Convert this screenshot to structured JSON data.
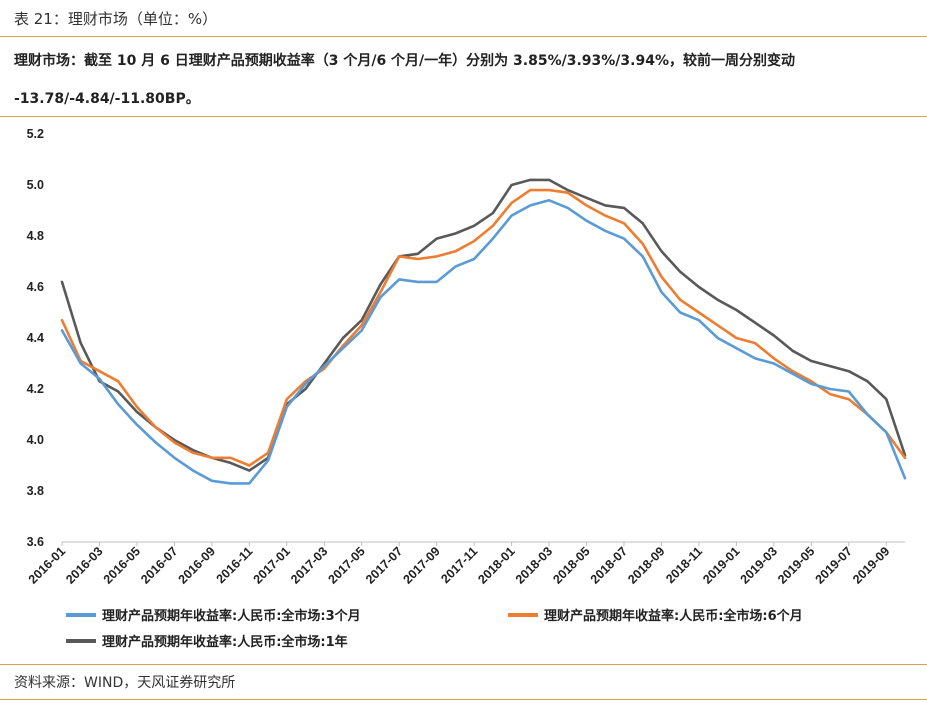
{
  "caption": "表 21：理财市场（单位：%）",
  "summary": {
    "line1": "理财市场：截至 10 月 6 日理财产品预期收益率（3 个月/6 个月/一年）分别为 3.85%/3.93%/3.94%，较前一周分别变动",
    "line2": "-13.78/-4.84/-11.80BP。"
  },
  "source": "资料来源：WIND，天风证券研究所",
  "colors": {
    "accent_rule": "#d9a24a",
    "s3m": "#5b9bd5",
    "s6m": "#ed7d31",
    "s1y": "#595959"
  },
  "chart_data": {
    "type": "line",
    "title": "",
    "xlabel": "",
    "ylabel": "",
    "ylim": [
      3.6,
      5.2
    ],
    "y_ticks": [
      "5.2",
      "5.0",
      "4.8",
      "4.6",
      "4.4",
      "4.2",
      "4.0",
      "3.8",
      "3.6"
    ],
    "x_range": [
      "2016-01",
      "2019-10"
    ],
    "x_ticks": [
      "2016-01",
      "2016-03",
      "2016-05",
      "2016-07",
      "2016-09",
      "2016-11",
      "2017-01",
      "2017-03",
      "2017-05",
      "2017-07",
      "2017-09",
      "2017-11",
      "2018-01",
      "2018-03",
      "2018-05",
      "2018-07",
      "2018-09",
      "2018-11",
      "2019-01",
      "2019-03",
      "2019-05",
      "2019-07",
      "2019-09"
    ],
    "grid": false,
    "legend": "bottom",
    "series": [
      {
        "name": "理财产品预期年收益率:人民币:全市场:3个月",
        "color": "#5b9bd5",
        "x": [
          "2016-01",
          "2016-02",
          "2016-03",
          "2016-04",
          "2016-05",
          "2016-06",
          "2016-07",
          "2016-08",
          "2016-09",
          "2016-10",
          "2016-11",
          "2016-12",
          "2017-01",
          "2017-02",
          "2017-03",
          "2017-04",
          "2017-05",
          "2017-06",
          "2017-07",
          "2017-08",
          "2017-09",
          "2017-10",
          "2017-11",
          "2017-12",
          "2018-01",
          "2018-02",
          "2018-03",
          "2018-04",
          "2018-05",
          "2018-06",
          "2018-07",
          "2018-08",
          "2018-09",
          "2018-10",
          "2018-11",
          "2018-12",
          "2019-01",
          "2019-02",
          "2019-03",
          "2019-04",
          "2019-05",
          "2019-06",
          "2019-07",
          "2019-08",
          "2019-09",
          "2019-10"
        ],
        "values": [
          4.43,
          4.3,
          4.24,
          4.14,
          4.06,
          3.99,
          3.93,
          3.88,
          3.84,
          3.83,
          3.83,
          3.92,
          4.13,
          4.22,
          4.29,
          4.36,
          4.43,
          4.56,
          4.63,
          4.62,
          4.62,
          4.68,
          4.71,
          4.79,
          4.88,
          4.92,
          4.94,
          4.91,
          4.86,
          4.82,
          4.79,
          4.72,
          4.58,
          4.5,
          4.47,
          4.4,
          4.36,
          4.32,
          4.3,
          4.26,
          4.22,
          4.2,
          4.19,
          4.1,
          4.03,
          3.85
        ]
      },
      {
        "name": "理财产品预期年收益率:人民币:全市场:6个月",
        "color": "#ed7d31",
        "x": [
          "2016-01",
          "2016-02",
          "2016-03",
          "2016-04",
          "2016-05",
          "2016-06",
          "2016-07",
          "2016-08",
          "2016-09",
          "2016-10",
          "2016-11",
          "2016-12",
          "2017-01",
          "2017-02",
          "2017-03",
          "2017-04",
          "2017-05",
          "2017-06",
          "2017-07",
          "2017-08",
          "2017-09",
          "2017-10",
          "2017-11",
          "2017-12",
          "2018-01",
          "2018-02",
          "2018-03",
          "2018-04",
          "2018-05",
          "2018-06",
          "2018-07",
          "2018-08",
          "2018-09",
          "2018-10",
          "2018-11",
          "2018-12",
          "2019-01",
          "2019-02",
          "2019-03",
          "2019-04",
          "2019-05",
          "2019-06",
          "2019-07",
          "2019-08",
          "2019-09",
          "2019-10"
        ],
        "values": [
          4.47,
          4.31,
          4.27,
          4.23,
          4.13,
          4.05,
          3.99,
          3.95,
          3.93,
          3.93,
          3.9,
          3.95,
          4.16,
          4.23,
          4.28,
          4.37,
          4.45,
          4.58,
          4.72,
          4.71,
          4.72,
          4.74,
          4.78,
          4.84,
          4.93,
          4.98,
          4.98,
          4.97,
          4.92,
          4.88,
          4.85,
          4.77,
          4.64,
          4.55,
          4.5,
          4.45,
          4.4,
          4.38,
          4.32,
          4.27,
          4.23,
          4.18,
          4.16,
          4.1,
          4.03,
          3.93
        ]
      },
      {
        "name": "理财产品预期年收益率:人民币:全市场:1年",
        "color": "#595959",
        "x": [
          "2016-01",
          "2016-02",
          "2016-03",
          "2016-04",
          "2016-05",
          "2016-06",
          "2016-07",
          "2016-08",
          "2016-09",
          "2016-10",
          "2016-11",
          "2016-12",
          "2017-01",
          "2017-02",
          "2017-03",
          "2017-04",
          "2017-05",
          "2017-06",
          "2017-07",
          "2017-08",
          "2017-09",
          "2017-10",
          "2017-11",
          "2017-12",
          "2018-01",
          "2018-02",
          "2018-03",
          "2018-04",
          "2018-05",
          "2018-06",
          "2018-07",
          "2018-08",
          "2018-09",
          "2018-10",
          "2018-11",
          "2018-12",
          "2019-01",
          "2019-02",
          "2019-03",
          "2019-04",
          "2019-05",
          "2019-06",
          "2019-07",
          "2019-08",
          "2019-09",
          "2019-10"
        ],
        "values": [
          4.62,
          4.38,
          4.23,
          4.19,
          4.11,
          4.05,
          4.0,
          3.96,
          3.93,
          3.91,
          3.88,
          3.93,
          4.14,
          4.2,
          4.3,
          4.4,
          4.47,
          4.61,
          4.72,
          4.73,
          4.79,
          4.81,
          4.84,
          4.89,
          5.0,
          5.02,
          5.02,
          4.98,
          4.95,
          4.92,
          4.91,
          4.85,
          4.74,
          4.66,
          4.6,
          4.55,
          4.51,
          4.46,
          4.41,
          4.35,
          4.31,
          4.29,
          4.27,
          4.23,
          4.16,
          3.94
        ]
      }
    ]
  }
}
